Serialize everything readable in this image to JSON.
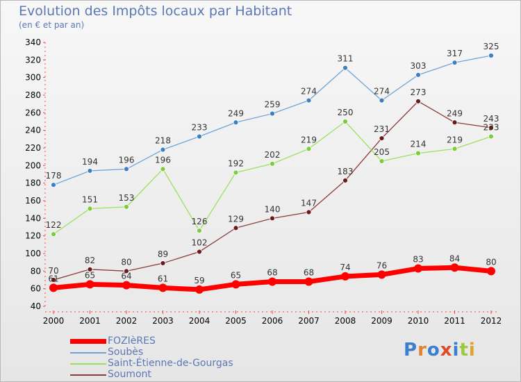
{
  "title": "Evolution des Impôts locaux par Habitant",
  "subtitle": "(en € et par an)",
  "logo": {
    "text": "Proxiti",
    "colors": [
      "#3a7fd0",
      "#e0822a",
      "#3a7fd0",
      "#e04a2a",
      "#3a7fd0",
      "#9ac93a",
      "#e0a22a"
    ]
  },
  "chart_data": {
    "type": "line",
    "x": [
      2000,
      2001,
      2002,
      2003,
      2004,
      2005,
      2006,
      2007,
      2008,
      2009,
      2010,
      2011,
      2012
    ],
    "ylim": [
      40,
      340
    ],
    "yticks": [
      40,
      60,
      80,
      100,
      120,
      140,
      160,
      180,
      200,
      220,
      240,
      260,
      280,
      300,
      320,
      340
    ],
    "grid": false,
    "legend": "bottom-left",
    "series": [
      {
        "name": "FOZIèRES",
        "color": "#ff0000",
        "marker": "#ff0000",
        "values": [
          61,
          65,
          64,
          61,
          59,
          65,
          68,
          68,
          74,
          76,
          83,
          84,
          80
        ]
      },
      {
        "name": "Soubès",
        "color": "#6fa3d6",
        "marker": "#3e7fc0",
        "values": [
          178,
          194,
          196,
          218,
          233,
          249,
          259,
          274,
          311,
          274,
          303,
          317,
          325
        ]
      },
      {
        "name": "Saint-Étienne-de-Gourgas",
        "color": "#9be05c",
        "marker": "#7ccc3c",
        "values": [
          122,
          151,
          153,
          196,
          126,
          192,
          202,
          219,
          250,
          205,
          214,
          219,
          233
        ]
      },
      {
        "name": "Soumont",
        "color": "#8b3a3a",
        "marker": "#6b1a1a",
        "values": [
          70,
          82,
          80,
          89,
          102,
          129,
          140,
          147,
          183,
          231,
          273,
          249,
          243
        ]
      }
    ]
  }
}
